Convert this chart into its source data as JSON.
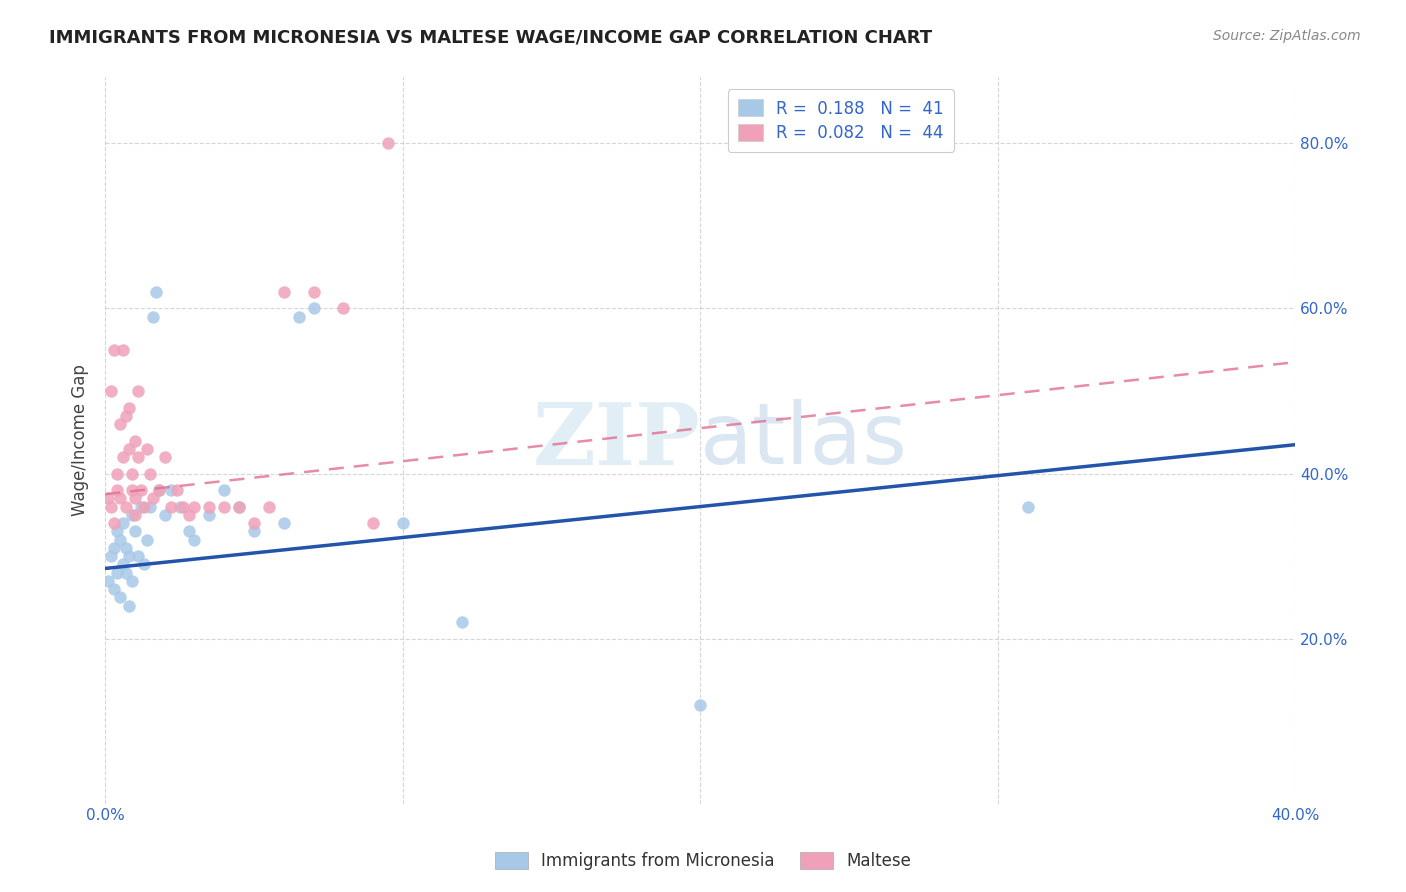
{
  "title": "IMMIGRANTS FROM MICRONESIA VS MALTESE WAGE/INCOME GAP CORRELATION CHART",
  "source": "Source: ZipAtlas.com",
  "ylabel": "Wage/Income Gap",
  "xlim": [
    0.0,
    0.4
  ],
  "ylim": [
    0.0,
    0.88
  ],
  "xtick_labels": [
    "0.0%",
    "",
    "",
    "",
    "40.0%"
  ],
  "xtick_vals": [
    0.0,
    0.1,
    0.2,
    0.3,
    0.4
  ],
  "ytick_labels": [
    "20.0%",
    "40.0%",
    "60.0%",
    "80.0%"
  ],
  "ytick_vals": [
    0.2,
    0.4,
    0.6,
    0.8
  ],
  "watermark_zip": "ZIP",
  "watermark_atlas": "atlas",
  "color_blue": "#a8c8e8",
  "color_pink": "#f0a0b8",
  "line_blue": "#2255aa",
  "line_pink": "#e07090",
  "series1_label": "Immigrants from Micronesia",
  "series2_label": "Maltese",
  "legend_blue": "R =  0.188   N =  41",
  "legend_pink": "R =  0.082   N =  44",
  "blue_line_x0": 0.0,
  "blue_line_y0": 0.285,
  "blue_line_x1": 0.4,
  "blue_line_y1": 0.435,
  "pink_line_x0": 0.0,
  "pink_line_y0": 0.375,
  "pink_line_x1": 0.1,
  "pink_line_y1": 0.415,
  "micronesia_x": [
    0.001,
    0.002,
    0.003,
    0.003,
    0.004,
    0.004,
    0.005,
    0.005,
    0.006,
    0.006,
    0.007,
    0.007,
    0.008,
    0.008,
    0.009,
    0.009,
    0.01,
    0.011,
    0.012,
    0.013,
    0.014,
    0.015,
    0.016,
    0.017,
    0.018,
    0.02,
    0.022,
    0.025,
    0.028,
    0.03,
    0.035,
    0.04,
    0.045,
    0.05,
    0.06,
    0.065,
    0.07,
    0.1,
    0.12,
    0.2,
    0.31
  ],
  "micronesia_y": [
    0.27,
    0.3,
    0.26,
    0.31,
    0.33,
    0.28,
    0.25,
    0.32,
    0.29,
    0.34,
    0.31,
    0.28,
    0.24,
    0.3,
    0.35,
    0.27,
    0.33,
    0.3,
    0.36,
    0.29,
    0.32,
    0.36,
    0.59,
    0.62,
    0.38,
    0.35,
    0.38,
    0.36,
    0.33,
    0.32,
    0.35,
    0.38,
    0.36,
    0.33,
    0.34,
    0.59,
    0.6,
    0.34,
    0.22,
    0.12,
    0.36
  ],
  "maltese_x": [
    0.001,
    0.002,
    0.002,
    0.003,
    0.003,
    0.004,
    0.004,
    0.005,
    0.005,
    0.006,
    0.006,
    0.007,
    0.007,
    0.008,
    0.008,
    0.009,
    0.009,
    0.01,
    0.01,
    0.011,
    0.011,
    0.012,
    0.013,
    0.014,
    0.015,
    0.016,
    0.018,
    0.02,
    0.022,
    0.024,
    0.026,
    0.028,
    0.03,
    0.035,
    0.04,
    0.045,
    0.05,
    0.055,
    0.06,
    0.07,
    0.08,
    0.09,
    0.095,
    0.01
  ],
  "maltese_y": [
    0.37,
    0.36,
    0.5,
    0.34,
    0.55,
    0.4,
    0.38,
    0.46,
    0.37,
    0.42,
    0.55,
    0.47,
    0.36,
    0.43,
    0.48,
    0.38,
    0.4,
    0.44,
    0.37,
    0.42,
    0.5,
    0.38,
    0.36,
    0.43,
    0.4,
    0.37,
    0.38,
    0.42,
    0.36,
    0.38,
    0.36,
    0.35,
    0.36,
    0.36,
    0.36,
    0.36,
    0.34,
    0.36,
    0.62,
    0.62,
    0.6,
    0.34,
    0.8,
    0.35
  ]
}
